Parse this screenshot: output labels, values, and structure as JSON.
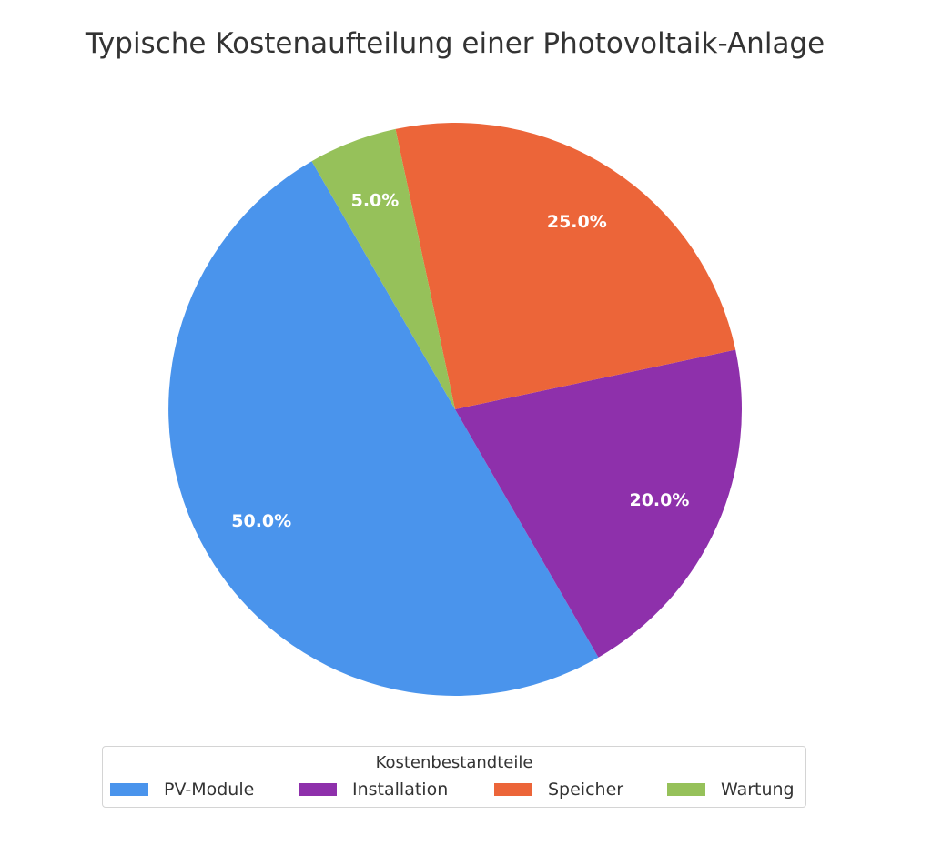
{
  "chart_data": {
    "type": "pie",
    "title": "Typische Kostenaufteilung einer Photovoltaik-Anlage",
    "legend_title": "Kostenbestandteile",
    "legend_position": "bottom-center",
    "categories": [
      "PV-Module",
      "Installation",
      "Speicher",
      "Wartung"
    ],
    "values": [
      50.0,
      20.0,
      25.0,
      5.0
    ],
    "value_labels": [
      "50.0%",
      "20.0%",
      "25.0%",
      "5.0%"
    ],
    "colors": [
      "#4a94ec",
      "#8e30ab",
      "#ec6539",
      "#96c15a"
    ]
  }
}
